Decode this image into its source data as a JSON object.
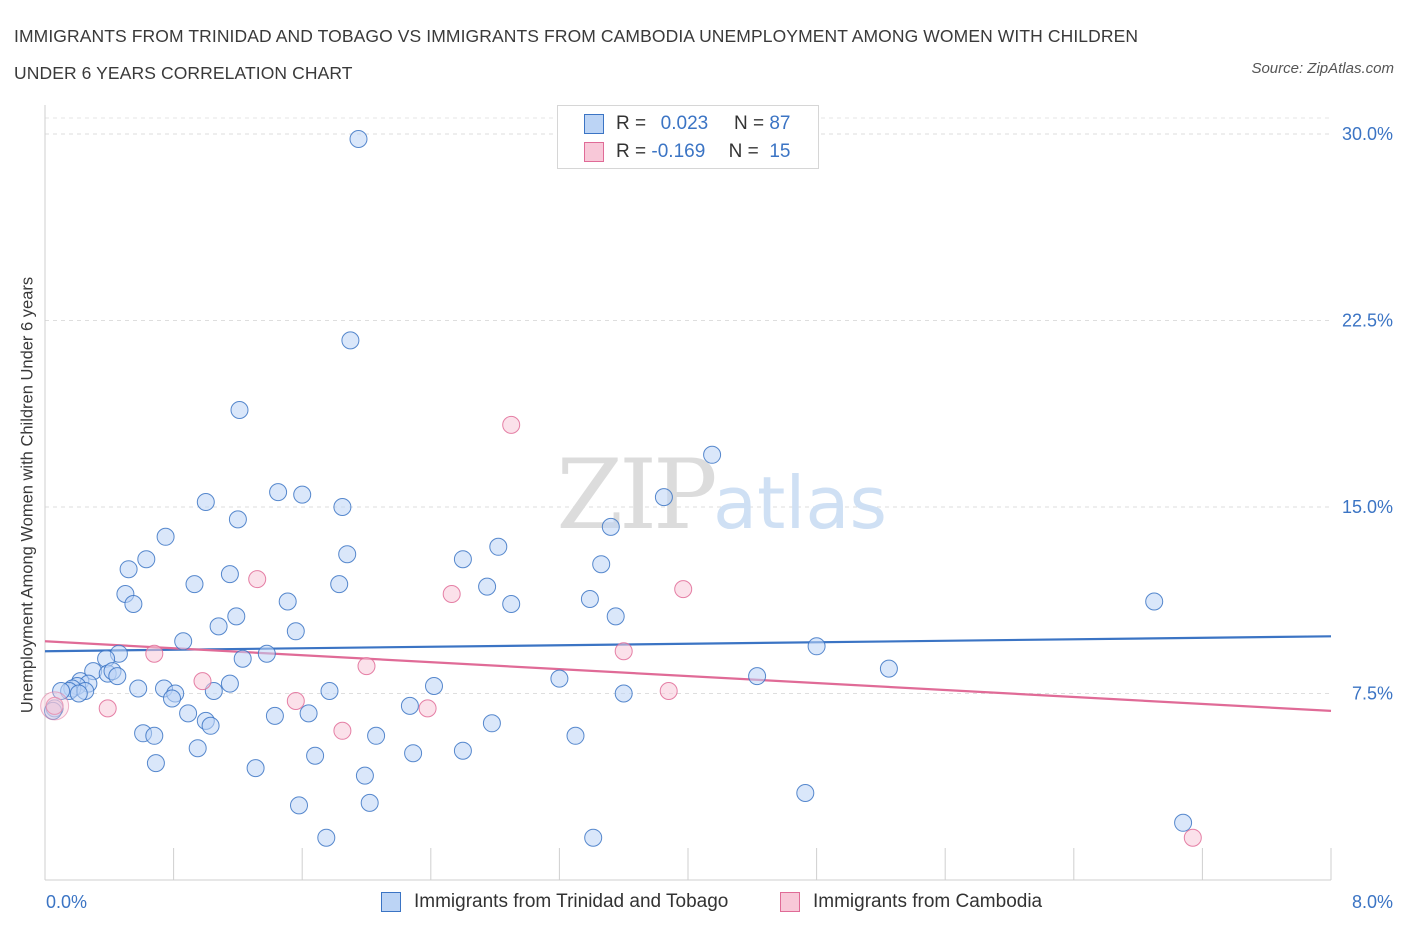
{
  "title": "IMMIGRANTS FROM TRINIDAD AND TOBAGO VS IMMIGRANTS FROM CAMBODIA UNEMPLOYMENT AMONG WOMEN WITH CHILDREN UNDER 6 YEARS CORRELATION CHART",
  "source": "Source: ZipAtlas.com",
  "watermark": {
    "zip": "ZIP",
    "atlas": "atlas"
  },
  "colors": {
    "blue": "#3b74c4",
    "blue_fill": "#bcd4f5",
    "pink": "#e06b97",
    "pink_fill": "#f8c8d8",
    "axis_text": "#3b74c4"
  },
  "legend": {
    "rows": [
      {
        "r_label": "R =",
        "r_value": "0.023",
        "n_label": "N =",
        "n_value": "87"
      },
      {
        "r_label": "R =",
        "r_value": "-0.169",
        "n_label": "N =",
        "n_value": "15"
      }
    ]
  },
  "bottom_legend": [
    "Immigrants from Trinidad and Tobago",
    "Immigrants from Cambodia"
  ],
  "chart_data": {
    "type": "scatter",
    "title": "IMMIGRANTS FROM TRINIDAD AND TOBAGO VS IMMIGRANTS FROM CAMBODIA UNEMPLOYMENT AMONG WOMEN WITH CHILDREN UNDER 6 YEARS CORRELATION CHART",
    "xlabel": "",
    "ylabel": "Unemployment Among Women with Children Under 6 years",
    "xlim": [
      0,
      8
    ],
    "ylim": [
      0,
      30.5
    ],
    "x_tick_labels": [
      {
        "value": 0,
        "label": "0.0%"
      },
      {
        "value": 8,
        "label": "8.0%"
      }
    ],
    "y_tick_labels": [
      {
        "value": 7.5,
        "label": "7.5%"
      },
      {
        "value": 15,
        "label": "15.0%"
      },
      {
        "value": 22.5,
        "label": "22.5%"
      },
      {
        "value": 30,
        "label": "30.0%"
      }
    ],
    "grid": "horizontal dashed",
    "legend_position": "top-center",
    "series": [
      {
        "name": "Immigrants from Trinidad and Tobago",
        "color": "#3b74c4",
        "r": 0.023,
        "n": 87,
        "trend": [
          [
            0,
            9.2
          ],
          [
            8,
            9.8
          ]
        ],
        "points": [
          [
            1.95,
            29.8
          ],
          [
            1.9,
            21.7
          ],
          [
            1.21,
            18.9
          ],
          [
            4.15,
            17.1
          ],
          [
            1.45,
            15.6
          ],
          [
            1.6,
            15.5
          ],
          [
            1.85,
            15.0
          ],
          [
            1.0,
            15.2
          ],
          [
            3.85,
            15.4
          ],
          [
            1.2,
            14.5
          ],
          [
            0.75,
            13.8
          ],
          [
            3.52,
            14.2
          ],
          [
            2.82,
            13.4
          ],
          [
            1.88,
            13.1
          ],
          [
            0.63,
            12.9
          ],
          [
            2.6,
            12.9
          ],
          [
            0.52,
            12.5
          ],
          [
            3.46,
            12.7
          ],
          [
            1.15,
            12.3
          ],
          [
            0.93,
            11.9
          ],
          [
            1.83,
            11.9
          ],
          [
            2.75,
            11.8
          ],
          [
            0.5,
            11.5
          ],
          [
            0.55,
            11.1
          ],
          [
            1.51,
            11.2
          ],
          [
            2.9,
            11.1
          ],
          [
            3.39,
            11.3
          ],
          [
            3.55,
            10.6
          ],
          [
            1.19,
            10.6
          ],
          [
            1.08,
            10.2
          ],
          [
            1.56,
            10.0
          ],
          [
            0.86,
            9.6
          ],
          [
            4.8,
            9.4
          ],
          [
            0.46,
            9.1
          ],
          [
            1.38,
            9.1
          ],
          [
            0.38,
            8.9
          ],
          [
            1.23,
            8.9
          ],
          [
            0.3,
            8.4
          ],
          [
            0.39,
            8.3
          ],
          [
            0.42,
            8.4
          ],
          [
            0.45,
            8.2
          ],
          [
            6.9,
            11.2
          ],
          [
            0.22,
            8.0
          ],
          [
            0.27,
            7.9
          ],
          [
            0.2,
            7.8
          ],
          [
            0.17,
            7.7
          ],
          [
            0.15,
            7.6
          ],
          [
            0.1,
            7.6
          ],
          [
            0.25,
            7.6
          ],
          [
            0.21,
            7.5
          ],
          [
            0.58,
            7.7
          ],
          [
            0.74,
            7.7
          ],
          [
            0.81,
            7.5
          ],
          [
            1.05,
            7.6
          ],
          [
            1.15,
            7.9
          ],
          [
            1.77,
            7.6
          ],
          [
            2.42,
            7.8
          ],
          [
            3.2,
            8.1
          ],
          [
            4.43,
            8.2
          ],
          [
            5.25,
            8.5
          ],
          [
            3.6,
            7.5
          ],
          [
            0.79,
            7.3
          ],
          [
            0.89,
            6.7
          ],
          [
            1.0,
            6.4
          ],
          [
            1.03,
            6.2
          ],
          [
            1.43,
            6.6
          ],
          [
            1.64,
            6.7
          ],
          [
            2.27,
            7.0
          ],
          [
            2.78,
            6.3
          ],
          [
            0.06,
            6.9
          ],
          [
            0.05,
            6.8
          ],
          [
            0.61,
            5.9
          ],
          [
            0.68,
            5.8
          ],
          [
            2.06,
            5.8
          ],
          [
            3.3,
            5.8
          ],
          [
            0.95,
            5.3
          ],
          [
            1.68,
            5.0
          ],
          [
            2.29,
            5.1
          ],
          [
            2.6,
            5.2
          ],
          [
            0.69,
            4.7
          ],
          [
            1.31,
            4.5
          ],
          [
            1.99,
            4.2
          ],
          [
            2.02,
            3.1
          ],
          [
            1.58,
            3.0
          ],
          [
            4.73,
            3.5
          ],
          [
            1.75,
            1.7
          ],
          [
            3.41,
            1.7
          ],
          [
            7.08,
            2.3
          ]
        ]
      },
      {
        "name": "Immigrants from Cambodia",
        "color": "#e06b97",
        "r": -0.169,
        "n": 15,
        "trend": [
          [
            0,
            9.6
          ],
          [
            8,
            6.8
          ]
        ],
        "points": [
          [
            0.06,
            7.0
          ],
          [
            0.39,
            6.9
          ],
          [
            0.68,
            9.1
          ],
          [
            0.98,
            8.0
          ],
          [
            1.32,
            12.1
          ],
          [
            1.56,
            7.2
          ],
          [
            1.85,
            6.0
          ],
          [
            2.0,
            8.6
          ],
          [
            2.38,
            6.9
          ],
          [
            2.53,
            11.5
          ],
          [
            2.9,
            18.3
          ],
          [
            3.6,
            9.2
          ],
          [
            3.88,
            7.6
          ],
          [
            3.97,
            11.7
          ],
          [
            7.14,
            1.7
          ]
        ]
      }
    ]
  }
}
